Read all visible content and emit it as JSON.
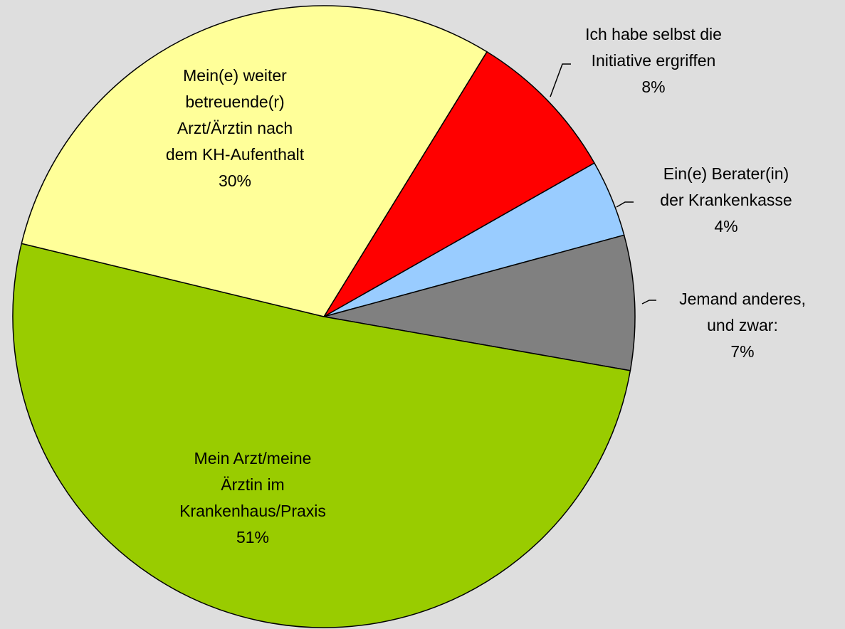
{
  "chart_data": {
    "type": "pie",
    "categories": [
      "Ich habe selbst die\nInitiative ergriffen",
      "Ein(e) Berater(in)\nder Krankenkasse",
      "Jemand anderes,\nund zwar:",
      "Mein Arzt/meine\nÄrztin im\nKrankenhaus/Praxis",
      "Mein(e) weiter\nbetreuende(r)\nArzt/Ärztin nach\ndem KH-Aufenthalt"
    ],
    "values": [
      8,
      4,
      7,
      51,
      30
    ],
    "value_labels": [
      "8%",
      "4%",
      "7%",
      "51%",
      "30%"
    ],
    "colors": [
      "#ff0000",
      "#99ccff",
      "#808080",
      "#99cc00",
      "#ffff99"
    ]
  }
}
